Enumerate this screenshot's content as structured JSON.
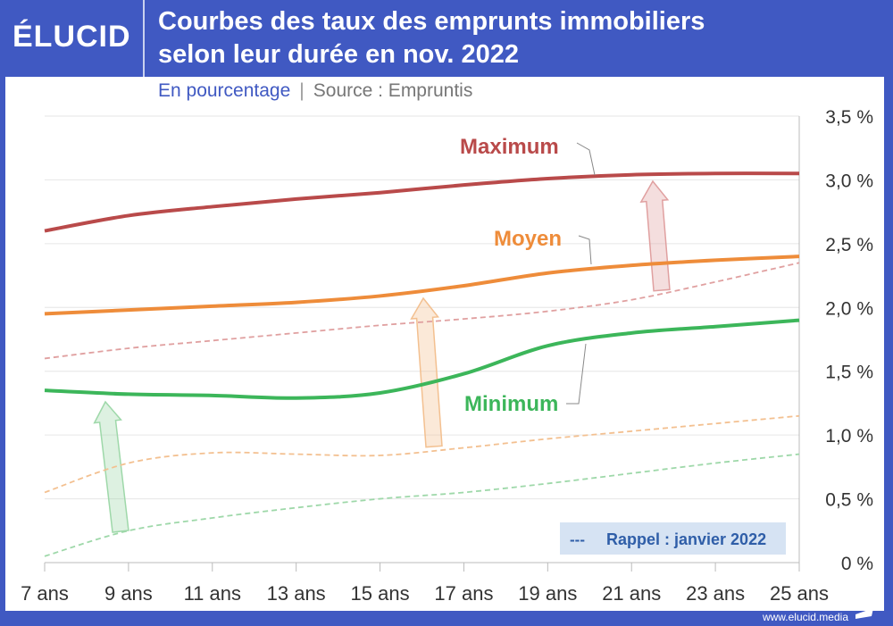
{
  "header": {
    "logo": "ÉLUCID",
    "title_line1": "Courbes des taux des emprunts immobiliers",
    "title_line2": "selon leur durée en nov. 2022",
    "subtitle": "En pourcentage",
    "separator": "|",
    "source": "Source : Empruntis"
  },
  "footer": {
    "url": "www.elucid.media"
  },
  "chart_data": {
    "type": "line",
    "title": "Courbes des taux des emprunts immobiliers selon leur durée en nov. 2022",
    "xlabel": "",
    "ylabel": "%",
    "categories": [
      "7 ans",
      "9 ans",
      "11 ans",
      "13 ans",
      "15 ans",
      "17 ans",
      "19 ans",
      "21 ans",
      "23 ans",
      "25 ans"
    ],
    "yticks": [
      "0 %",
      "0,5 %",
      "1,0 %",
      "1,5 %",
      "2,0 %",
      "2,5 %",
      "3,0 %",
      "3,5 %"
    ],
    "ylim": [
      0,
      3.5
    ],
    "series": [
      {
        "name": "Maximum",
        "color": "#b94a4a",
        "style": "solid",
        "values": [
          2.6,
          2.72,
          2.79,
          2.85,
          2.9,
          2.96,
          3.01,
          3.04,
          3.05,
          3.05
        ]
      },
      {
        "name": "Moyen",
        "color": "#ee8c3a",
        "style": "solid",
        "values": [
          1.95,
          1.98,
          2.01,
          2.04,
          2.09,
          2.17,
          2.27,
          2.33,
          2.37,
          2.4
        ]
      },
      {
        "name": "Minimum",
        "color": "#3cb65a",
        "style": "solid",
        "values": [
          1.35,
          1.32,
          1.31,
          1.29,
          1.33,
          1.48,
          1.7,
          1.8,
          1.85,
          1.9
        ]
      },
      {
        "name": "Maximum janvier 2022",
        "color": "#e0a0a0",
        "style": "dashed",
        "values": [
          1.6,
          1.68,
          1.74,
          1.8,
          1.86,
          1.91,
          1.97,
          2.06,
          2.2,
          2.35
        ]
      },
      {
        "name": "Moyen janvier 2022",
        "color": "#f3c090",
        "style": "dashed",
        "values": [
          0.55,
          0.78,
          0.86,
          0.85,
          0.84,
          0.9,
          0.97,
          1.03,
          1.09,
          1.15
        ]
      },
      {
        "name": "Minimum janvier 2022",
        "color": "#9ed8a9",
        "style": "dashed",
        "values": [
          0.05,
          0.25,
          0.35,
          0.43,
          0.5,
          0.55,
          0.62,
          0.7,
          0.78,
          0.85
        ]
      }
    ],
    "legend": {
      "symbol": "---",
      "label": "Rappel : janvier 2022",
      "placement": "bottom-right"
    },
    "grid": true
  }
}
